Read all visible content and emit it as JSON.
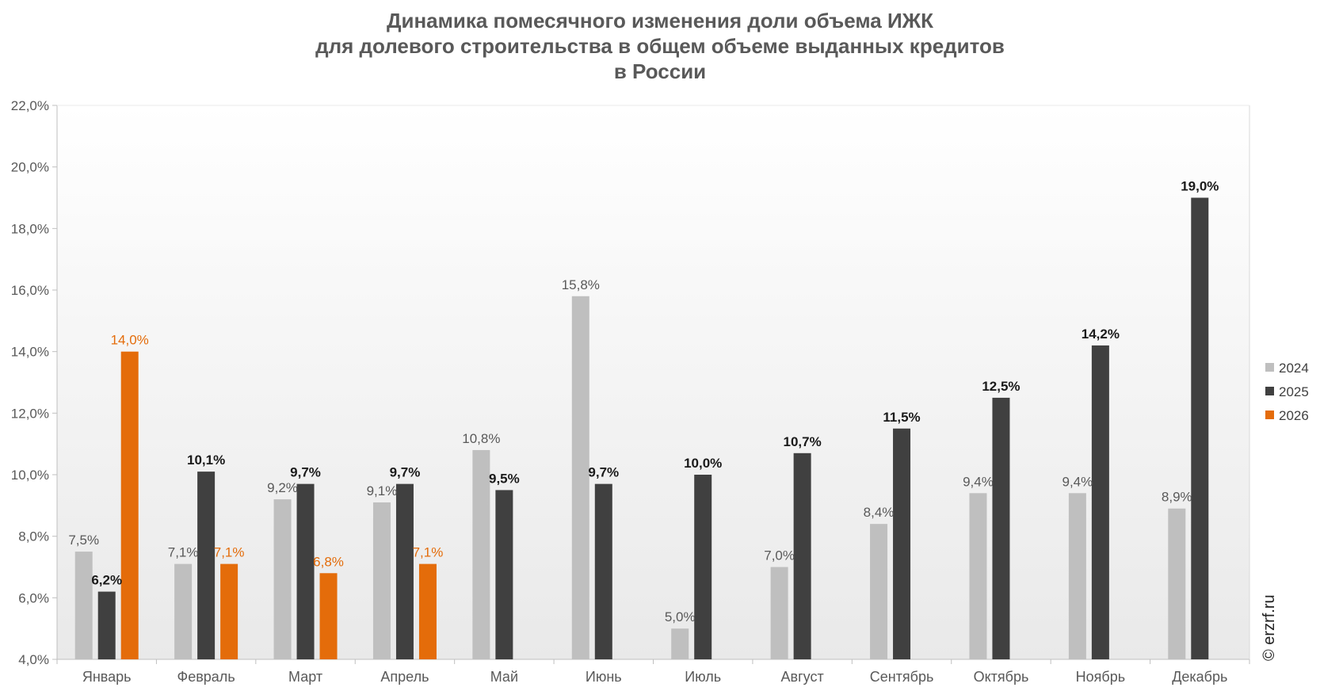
{
  "chart_data": {
    "type": "bar",
    "title_lines": [
      "Динамика помесячного изменения доли объема ИЖК",
      "для долевого строительства в общем объеме выданных кредитов",
      "в России"
    ],
    "categories": [
      "Январь",
      "Февраль",
      "Март",
      "Апрель",
      "Май",
      "Июнь",
      "Июль",
      "Август",
      "Сентябрь",
      "Октябрь",
      "Ноябрь",
      "Декабрь"
    ],
    "series": [
      {
        "name": "2024",
        "color": "#bfbfbf",
        "label_color": "#595959",
        "values": [
          7.5,
          7.1,
          9.2,
          9.1,
          10.8,
          15.8,
          5.0,
          7.0,
          8.4,
          9.4,
          9.4,
          8.9
        ],
        "labels": [
          "7,5%",
          "7,1%",
          "9,2%",
          "9,1%",
          "10,8%",
          "15,8%",
          "5,0%",
          "7,0%",
          "8,4%",
          "9,4%",
          "9,4%",
          "8,9%"
        ]
      },
      {
        "name": "2025",
        "color": "#404040",
        "label_color": "#1a1a1a",
        "values": [
          6.2,
          10.1,
          9.7,
          9.7,
          9.5,
          9.7,
          10.0,
          10.7,
          11.5,
          12.5,
          14.2,
          19.0
        ],
        "labels": [
          "6,2%",
          "10,1%",
          "9,7%",
          "9,7%",
          "9,5%",
          "9,7%",
          "10,0%",
          "10,7%",
          "11,5%",
          "12,5%",
          "14,2%",
          "19,0%"
        ]
      },
      {
        "name": "2026",
        "color": "#e46c0a",
        "label_color": "#e46c0a",
        "values": [
          14.0,
          7.1,
          6.8,
          7.1,
          null,
          null,
          null,
          null,
          null,
          null,
          null,
          null
        ],
        "labels": [
          "14,0%",
          "7,1%",
          "6,8%",
          "7,1%",
          null,
          null,
          null,
          null,
          null,
          null,
          null,
          null
        ]
      }
    ],
    "ylim": [
      4,
      22
    ],
    "yticks": [
      4,
      6,
      8,
      10,
      12,
      14,
      16,
      18,
      20,
      22
    ],
    "ytick_labels": [
      "4,0%",
      "6,0%",
      "8,0%",
      "10,0%",
      "12,0%",
      "14,0%",
      "16,0%",
      "18,0%",
      "20,0%",
      "22,0%"
    ],
    "grid": false,
    "legend_position": "right",
    "watermark": "© erzrf.ru"
  }
}
